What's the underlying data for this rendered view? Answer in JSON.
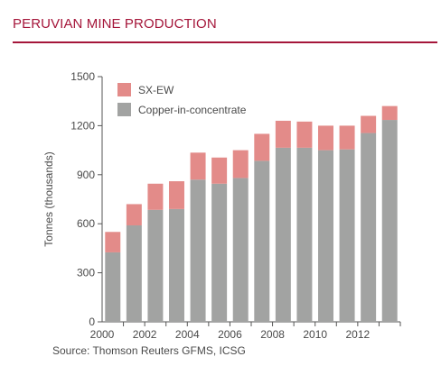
{
  "header": {
    "title": "PERUVIAN MINE PRODUCTION",
    "source": "Source: Thomson Reuters GFMS, ICSG"
  },
  "colors": {
    "accent": "#a5163a",
    "sxew": "#e38b89",
    "copper": "#a2a3a2",
    "axis": "#555555",
    "text": "#4a4a4a"
  },
  "chart_data": {
    "type": "bar",
    "stacked": true,
    "categories": [
      "2000",
      "2001",
      "2002",
      "2003",
      "2004",
      "2005",
      "2006",
      "2007",
      "2008",
      "2009",
      "2010",
      "2011",
      "2012",
      "2013"
    ],
    "series": [
      {
        "name": "Copper-in-concentrate",
        "color": "#a2a3a2",
        "values": [
          425,
          590,
          685,
          690,
          870,
          845,
          880,
          985,
          1065,
          1065,
          1050,
          1055,
          1155,
          1235
        ]
      },
      {
        "name": "SX-EW",
        "color": "#e38b89",
        "values": [
          125,
          130,
          160,
          170,
          165,
          160,
          170,
          165,
          165,
          160,
          150,
          145,
          105,
          85
        ]
      }
    ],
    "xtick_labels": [
      "2000",
      "",
      "2002",
      "",
      "2004",
      "",
      "2006",
      "",
      "2008",
      "",
      "2010",
      "",
      "2012",
      ""
    ],
    "ylabel": "Tonnes (thousands)",
    "xlabel": "",
    "ylim": [
      0,
      1500
    ],
    "yticks": [
      0,
      300,
      600,
      900,
      1200,
      1500
    ],
    "grid": false,
    "legend": "top-left"
  }
}
